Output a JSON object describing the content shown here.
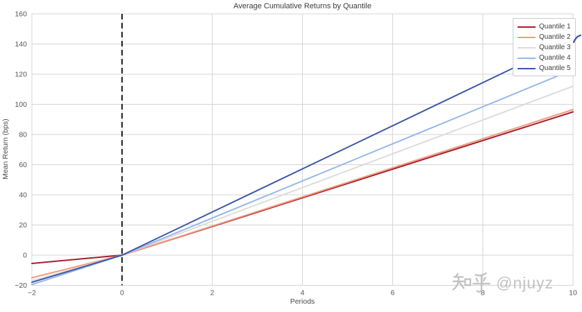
{
  "chart_data": {
    "type": "line",
    "title": "Average Cumulative Returns by Quantile",
    "xlabel": "Periods",
    "ylabel": "Mean Return (bps)",
    "xlim": [
      -2,
      10
    ],
    "ylim": [
      -20,
      160
    ],
    "x_ticks": [
      -2,
      0,
      2,
      4,
      6,
      8,
      10
    ],
    "y_ticks": [
      -20,
      0,
      20,
      40,
      60,
      80,
      100,
      120,
      140,
      160
    ],
    "grid": true,
    "grid_color": "#d4d4d4",
    "legend_position": "upper right",
    "event_vline": {
      "x": 0,
      "style": "dashed",
      "color": "#000000"
    },
    "x": [
      -2,
      0,
      10
    ],
    "series": [
      {
        "name": "Quantile 1",
        "color": "#a81c2c",
        "values": [
          -5.5,
          0,
          95
        ]
      },
      {
        "name": "Quantile 2",
        "color": "#ee9c7d",
        "values": [
          -15,
          0,
          96.5
        ]
      },
      {
        "name": "Quantile 3",
        "color": "#dcdcda",
        "values": [
          -17,
          0,
          112
        ]
      },
      {
        "name": "Quantile 4",
        "color": "#97b8e8",
        "values": [
          -19.5,
          0,
          123
        ]
      },
      {
        "name": "Quantile 5",
        "color": "#3c56a5",
        "values": [
          -18,
          0,
          143
        ]
      }
    ]
  },
  "watermark": {
    "site": "知乎",
    "handle": "@njuyz",
    "full_text": "知乎 @njuyz",
    "color": "#b5b5b5"
  }
}
